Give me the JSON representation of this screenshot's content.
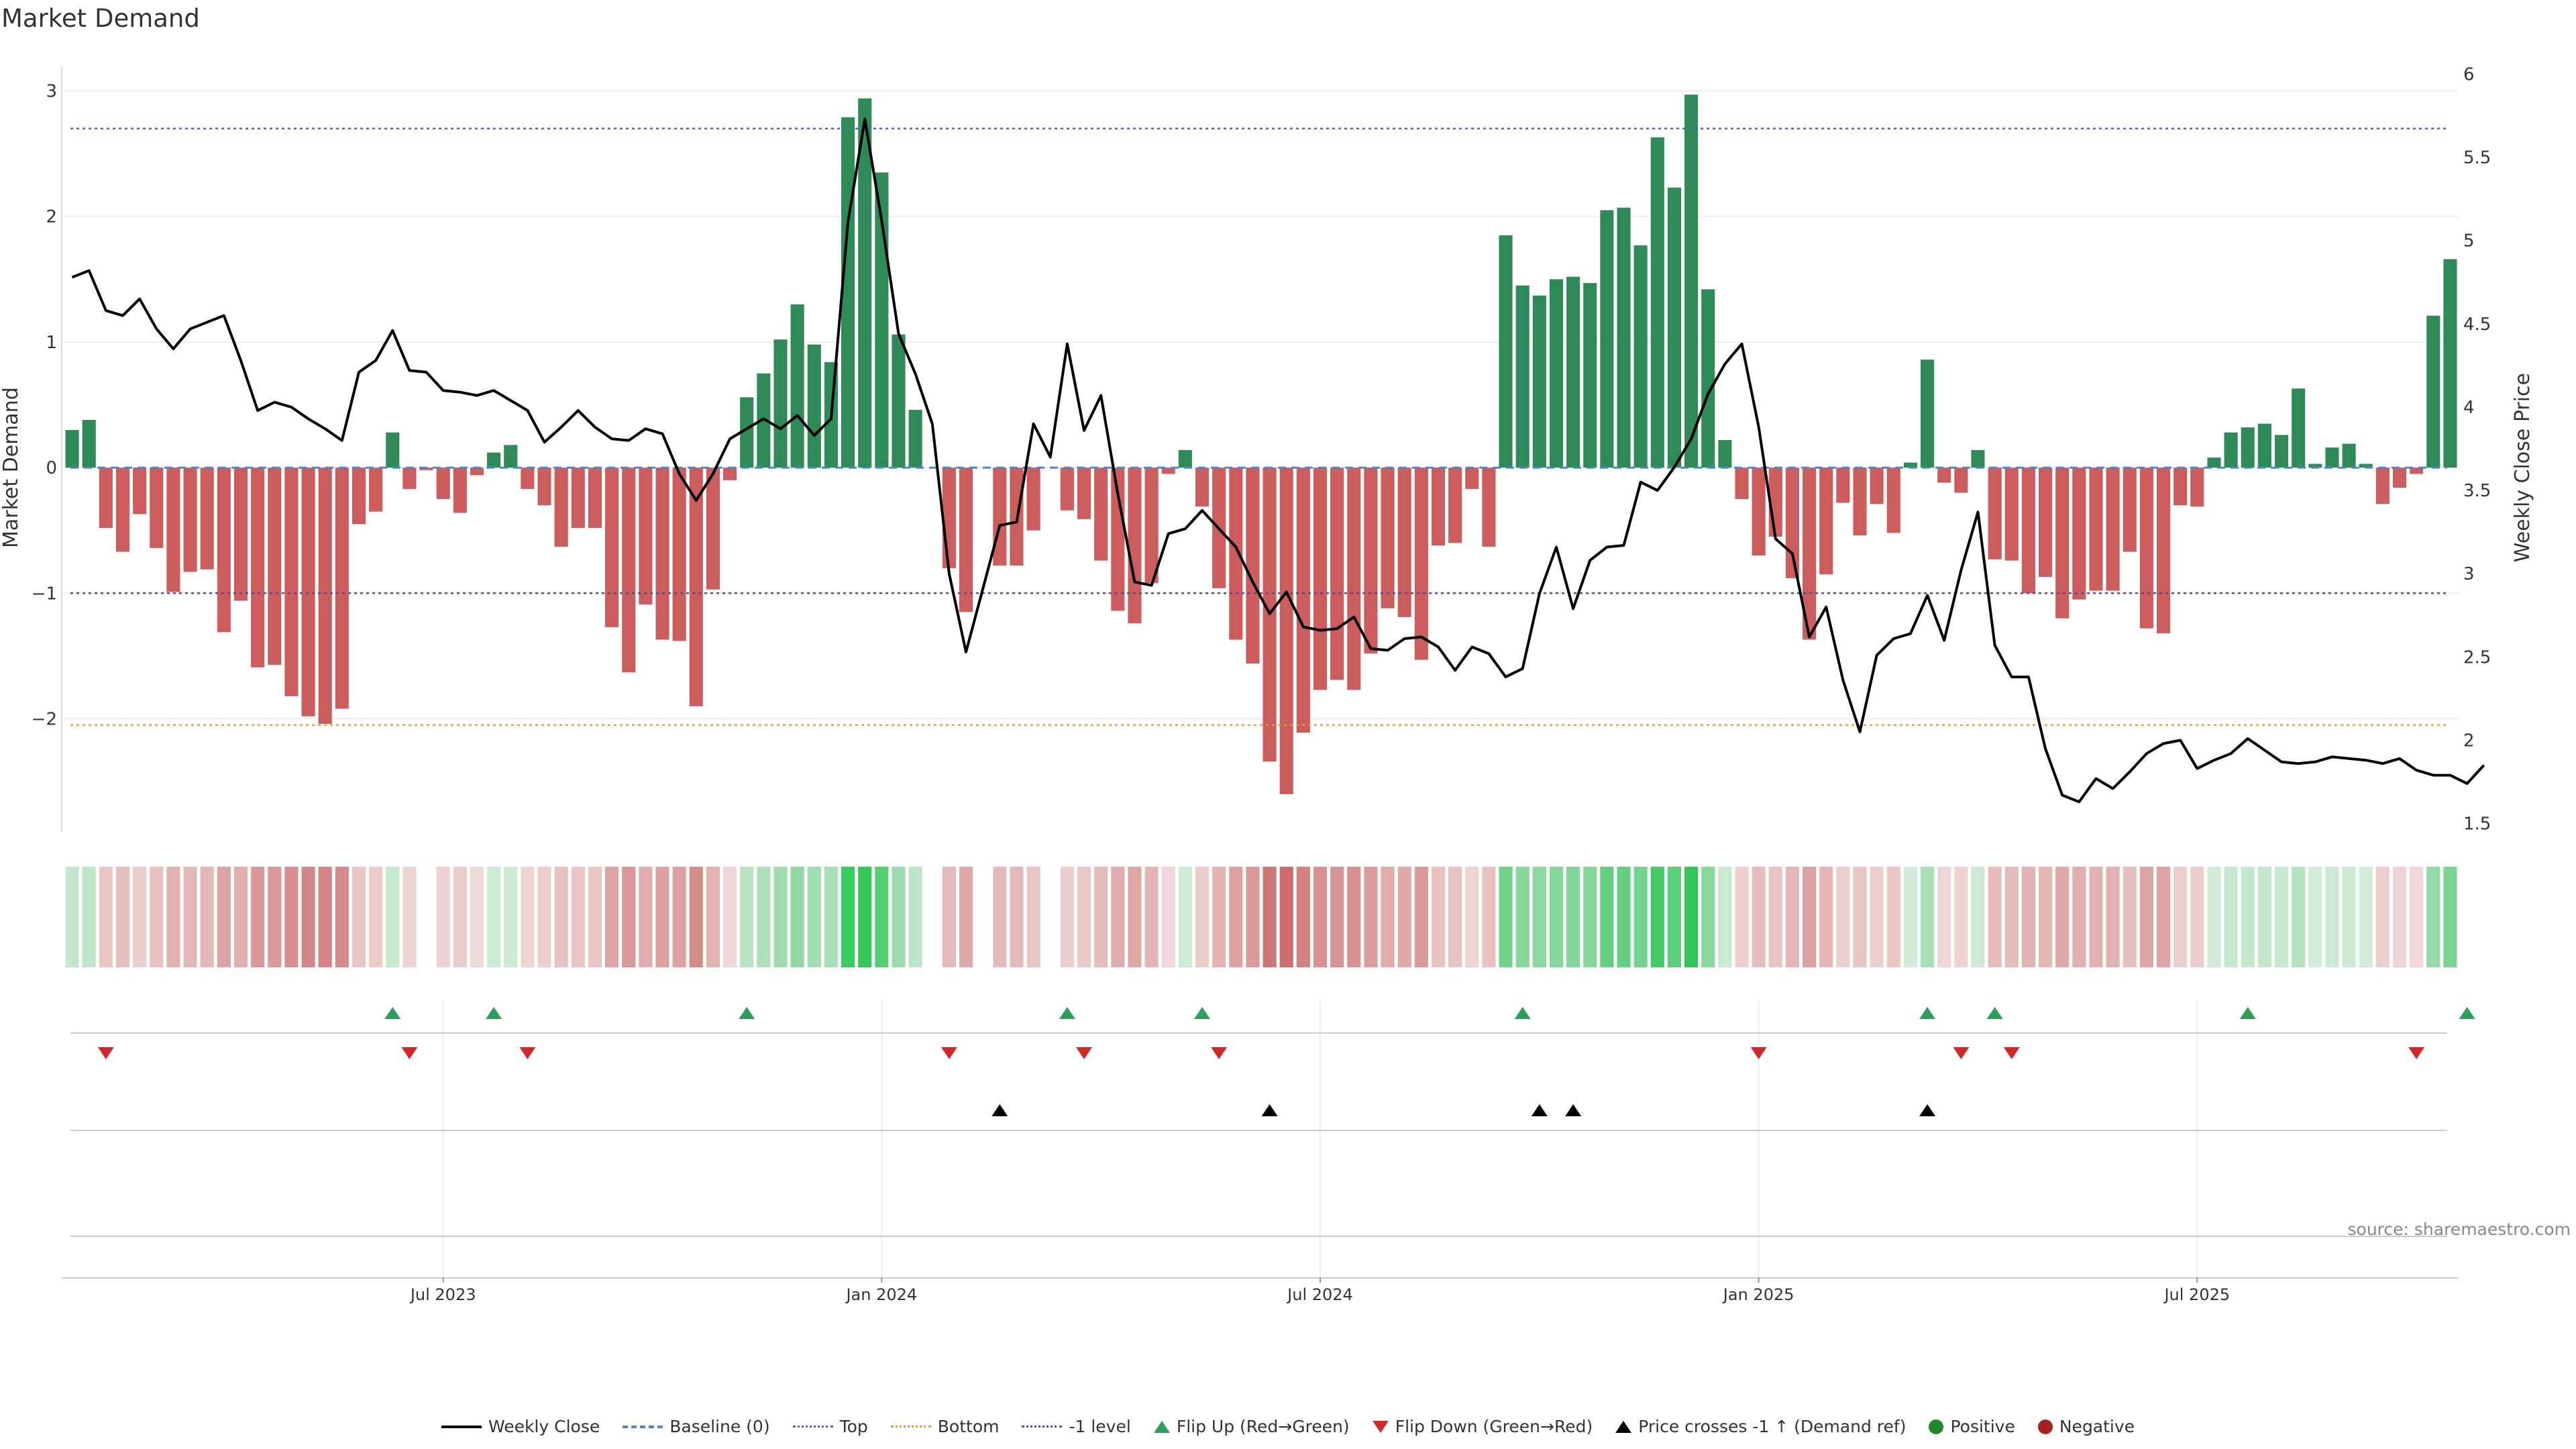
{
  "title": "Market Demand",
  "source": "source: sharemaestro.com",
  "chart_data": {
    "type": "bar",
    "ylabel_left": "Market Demand",
    "ylabel_right": "Weekly Close Price",
    "ylim_left": [
      -2.9,
      3.2
    ],
    "ylim_right": [
      1.45,
      6.05
    ],
    "yticks_left": [
      3,
      2,
      1,
      0,
      -1,
      -2
    ],
    "ytick_labels_left": [
      "3",
      "2",
      "1",
      "0",
      "−1",
      "−2"
    ],
    "yticks_right": [
      6,
      5.5,
      5,
      4.5,
      4,
      3.5,
      3,
      2.5,
      2,
      1.5
    ],
    "ytick_labels_right": [
      "6",
      "5.5",
      "5",
      "4.5",
      "4",
      "3.5",
      "3",
      "2.5",
      "2",
      "1.5"
    ],
    "xtick_indices": [
      22,
      48,
      74,
      100,
      126
    ],
    "xtick_labels": [
      "Jul 2023",
      "Jan 2024",
      "Jul 2024",
      "Jan 2025",
      "Jul 2025"
    ],
    "top_level": 2.7,
    "bottom_level": -2.05,
    "minus1_level": -1,
    "demand": [
      0.3,
      0.38,
      -0.48,
      -0.67,
      -0.37,
      -0.64,
      -0.99,
      -0.83,
      -0.81,
      -1.31,
      -1.06,
      -1.59,
      -1.57,
      -1.82,
      -1.98,
      -2.04,
      -1.92,
      -0.45,
      -0.35,
      0.28,
      -0.17,
      -0.02,
      -0.25,
      -0.36,
      -0.06,
      0.12,
      0.18,
      -0.17,
      -0.3,
      -0.63,
      -0.48,
      -0.48,
      -1.27,
      -1.63,
      -1.09,
      -1.37,
      -1.38,
      -1.9,
      -0.97,
      -0.1,
      0.56,
      0.75,
      1.02,
      1.3,
      0.98,
      0.84,
      2.79,
      2.94,
      2.35,
      1.06,
      0.46,
      0.0,
      -0.8,
      -1.15,
      0.0,
      -0.78,
      -0.78,
      -0.5,
      0.0,
      -0.34,
      -0.41,
      -0.74,
      -1.14,
      -1.24,
      -0.92,
      -0.05,
      0.14,
      -0.31,
      -0.96,
      -1.37,
      -1.56,
      -2.34,
      -2.6,
      -2.11,
      -1.77,
      -1.69,
      -1.77,
      -1.48,
      -1.12,
      -1.19,
      -1.53,
      -0.62,
      -0.6,
      -0.17,
      -0.63,
      1.85,
      1.45,
      1.37,
      1.5,
      1.52,
      1.47,
      2.05,
      2.07,
      1.77,
      2.63,
      2.23,
      2.97,
      1.42,
      0.22,
      -0.25,
      -0.7,
      -0.55,
      -0.88,
      -1.37,
      -0.85,
      -0.28,
      -0.54,
      -0.29,
      -0.52,
      0.04,
      0.86,
      -0.12,
      -0.2,
      0.14,
      -0.73,
      -0.74,
      -1.0,
      -0.87,
      -1.2,
      -1.05,
      -0.98,
      -0.98,
      -0.67,
      -1.28,
      -1.32,
      -0.3,
      -0.31,
      0.08,
      0.28,
      0.32,
      0.35,
      0.26,
      0.63,
      0.03,
      0.16,
      0.19,
      0.03,
      -0.29,
      -0.16,
      -0.05,
      1.21,
      1.66
    ],
    "price_x": [
      0,
      1,
      2,
      3,
      4,
      5,
      6,
      7,
      8,
      9,
      10,
      11,
      12,
      13,
      14,
      15,
      16,
      17,
      18,
      19,
      20,
      21,
      22,
      23,
      24,
      25,
      26,
      27,
      28,
      29,
      30,
      31,
      32,
      33,
      34,
      35,
      36,
      37,
      38,
      39,
      40,
      41,
      42,
      43,
      44,
      45,
      46,
      47,
      48,
      49,
      50,
      51,
      52,
      53,
      54,
      55,
      56,
      57,
      58,
      59,
      60,
      61,
      62,
      63,
      64,
      65,
      66,
      67,
      68,
      69,
      70,
      71,
      72,
      73,
      74,
      75,
      76,
      77,
      78,
      79,
      80,
      81,
      82,
      83,
      84,
      85,
      86,
      87,
      88,
      89,
      90,
      91,
      92,
      93,
      94,
      95,
      96,
      97,
      98,
      99,
      100,
      101,
      102,
      103,
      104,
      105,
      106,
      107,
      108,
      109,
      110,
      111,
      112,
      113,
      114,
      115,
      116,
      117,
      118,
      119,
      120,
      121,
      122,
      123,
      124,
      125,
      126,
      127,
      128,
      129,
      130,
      131,
      132,
      133,
      134,
      135,
      136,
      137,
      138,
      139,
      140,
      141,
      142,
      143
    ],
    "price": [
      4.78,
      4.82,
      4.58,
      4.55,
      4.65,
      4.47,
      4.35,
      4.47,
      4.51,
      4.55,
      4.28,
      3.98,
      4.03,
      4.0,
      3.93,
      3.87,
      3.8,
      4.21,
      4.28,
      4.46,
      4.22,
      4.21,
      4.1,
      4.09,
      4.07,
      4.1,
      4.04,
      3.98,
      3.79,
      3.88,
      3.98,
      3.88,
      3.81,
      3.8,
      3.87,
      3.84,
      3.6,
      3.44,
      3.6,
      3.81,
      3.87,
      3.93,
      3.87,
      3.95,
      3.83,
      3.93,
      5.11,
      5.73,
      5.12,
      4.44,
      4.2,
      3.9,
      3.0,
      2.53,
      2.91,
      3.29,
      3.31,
      3.9,
      3.7,
      4.38,
      3.86,
      4.07,
      3.48,
      2.95,
      2.93,
      3.24,
      3.27,
      3.38,
      3.27,
      3.16,
      2.95,
      2.76,
      2.89,
      2.68,
      2.66,
      2.67,
      2.74,
      2.55,
      2.54,
      2.61,
      2.62,
      2.56,
      2.42,
      2.56,
      2.52,
      2.38,
      2.43,
      2.88,
      3.16,
      2.79,
      3.08,
      3.16,
      3.17,
      3.55,
      3.5,
      3.64,
      3.81,
      4.08,
      4.26,
      4.38,
      3.88,
      3.21,
      3.12,
      2.62,
      2.8,
      2.36,
      2.05,
      2.51,
      2.61,
      2.64,
      2.87,
      2.6,
      3.02,
      3.37,
      2.57,
      2.38,
      2.38,
      1.95,
      1.67,
      1.63,
      1.77,
      1.71,
      1.81,
      1.92,
      1.98,
      2.0,
      1.83,
      1.88,
      1.92,
      2.01,
      1.94,
      1.87,
      1.86,
      1.87,
      1.9,
      1.89,
      1.88,
      1.86,
      1.89,
      1.82,
      1.79,
      1.79,
      1.74,
      1.85
    ],
    "flip_up_x": [
      19,
      25,
      40,
      59,
      67,
      86,
      110,
      114,
      129,
      142
    ],
    "flip_down_x": [
      2,
      20,
      27,
      52,
      60,
      68,
      100,
      112,
      115,
      139
    ],
    "price_cross_x": [
      55,
      71,
      87,
      89,
      110
    ],
    "legend": [
      "Weekly Close",
      "Baseline (0)",
      "Top",
      "Bottom",
      "-1 level",
      "Flip Up (Red→Green)",
      "Flip Down (Green→Red)",
      "Price crosses -1 ↑ (Demand ref)",
      "Positive",
      "Negative"
    ]
  },
  "colors": {
    "positive_bar": "#2e8b57",
    "negative_bar": "#cd5c5c",
    "price_line": "#000000",
    "baseline": "#4a86c8",
    "top_line": "#5b5bb8",
    "bottom_line": "#e0a030",
    "minus1_line": "#505090",
    "flip_up": "#2ca05a",
    "flip_down": "#d62728",
    "cross": "#000000",
    "positive_dot": "#1f8a2a",
    "negative_dot": "#a82020"
  }
}
